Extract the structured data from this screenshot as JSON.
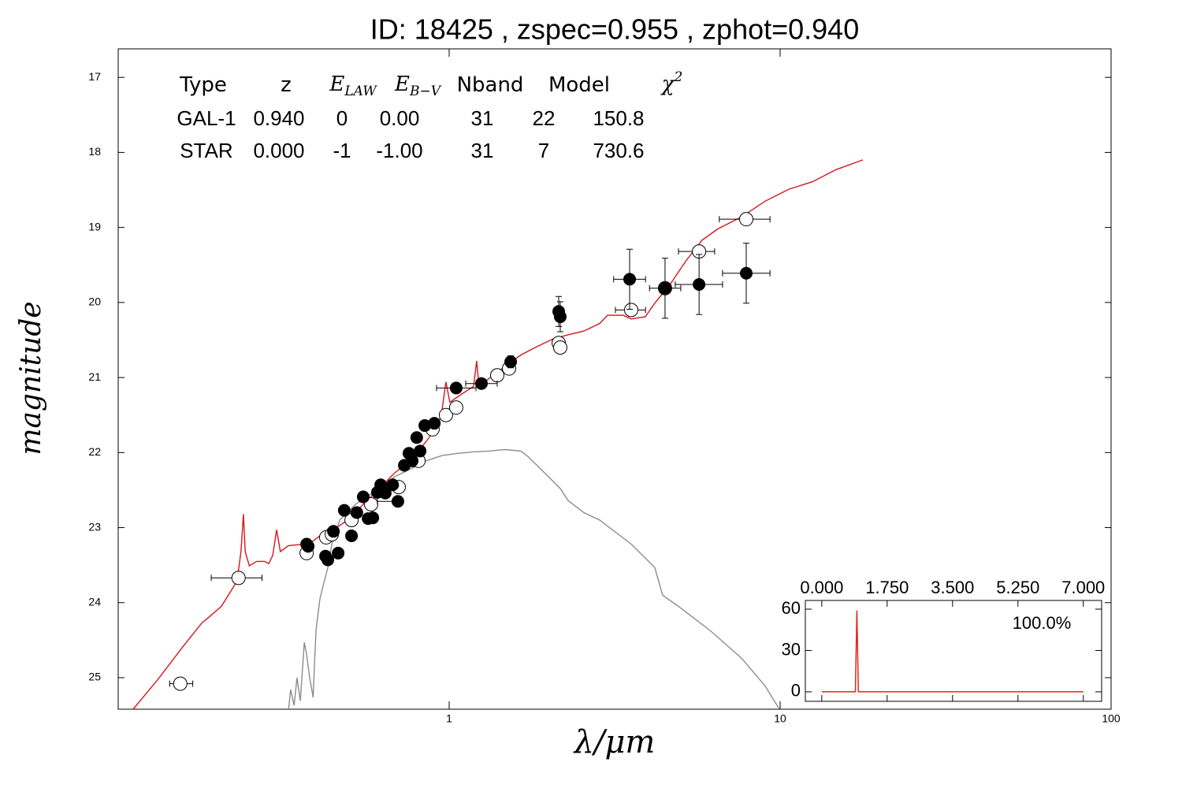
{
  "chart_data": [
    {
      "type": "sed",
      "title": "ID:  18425 , zspec=0.955 , zphot=0.940",
      "x_label": "λ/μm",
      "y_label": "magnitude",
      "xscale": "log",
      "xlim": [
        0.1,
        100
      ],
      "xticks": [
        1,
        10,
        100
      ],
      "ylim": [
        25.42,
        16.62
      ],
      "yticks": [
        17,
        18,
        19,
        20,
        21,
        22,
        23,
        24,
        25
      ],
      "fit_table": {
        "header": [
          {
            "text": "Type"
          },
          {
            "text": "z"
          },
          {
            "text": "E",
            "sub": "LAW"
          },
          {
            "text": "E",
            "sub": "B−V"
          },
          {
            "text": "Nband"
          },
          {
            "text": "Model"
          },
          {
            "text": "χ",
            "sup": "2"
          }
        ],
        "rows": [
          {
            "color": "#e3261b",
            "cells": [
              "GAL-1",
              "0.940",
              "0",
              "0.00",
              "31",
              "22",
              "150.8"
            ]
          },
          {
            "color": "#9a9a9a",
            "cells": [
              "STAR",
              "0.000",
              "-1",
              "-1.00",
              "31",
              "7",
              "730.6"
            ]
          }
        ]
      },
      "series": [
        {
          "style": "line",
          "color": "#d9141b",
          "x": [
            0.111,
            0.132,
            0.156,
            0.179,
            0.186,
            0.205,
            0.223,
            0.229,
            0.235,
            0.239,
            0.242,
            0.249,
            0.262,
            0.277,
            0.285,
            0.293,
            0.301,
            0.309,
            0.327,
            0.365,
            0.385,
            0.418,
            0.454,
            0.493,
            0.55,
            0.614,
            0.685,
            0.764,
            0.853,
            0.926,
            0.952,
            0.978,
            1.005,
            1.091,
            1.185,
            1.211,
            1.231,
            1.322,
            1.476,
            1.647,
            1.837,
            2.05,
            2.288,
            2.553,
            2.849,
            3.01,
            3.359,
            3.548,
            3.915,
            4.18,
            4.665,
            5.206,
            5.808,
            6.481,
            7.643,
            9.01,
            10.63,
            12.53,
            14.76,
            17.78
          ],
          "values": [
            25.42,
            25.02,
            24.6,
            24.27,
            24.21,
            24.05,
            23.79,
            23.69,
            23.32,
            22.82,
            23.32,
            23.51,
            23.45,
            23.45,
            23.48,
            23.37,
            23.03,
            23.32,
            23.24,
            23.22,
            23.19,
            23.07,
            23.01,
            22.9,
            22.69,
            22.48,
            22.27,
            22.11,
            21.85,
            21.64,
            21.43,
            21.06,
            21.33,
            21.22,
            21.12,
            20.78,
            21.12,
            21.01,
            20.85,
            20.7,
            20.59,
            20.49,
            20.43,
            20.38,
            20.28,
            20.17,
            20.17,
            20.22,
            20.19,
            20.01,
            19.75,
            19.44,
            19.17,
            19.02,
            18.86,
            18.65,
            18.49,
            18.39,
            18.23,
            18.1
          ]
        },
        {
          "style": "line",
          "color": "#8c8c8c",
          "x": [
            0.327,
            0.332,
            0.34,
            0.347,
            0.355,
            0.365,
            0.371,
            0.379,
            0.388,
            0.396,
            0.407,
            0.418,
            0.43,
            0.442,
            0.467,
            0.521,
            0.614,
            0.685,
            0.764,
            0.853,
            0.952,
            1.062,
            1.185,
            1.322,
            1.476,
            1.647,
            1.738,
            1.941,
            2.166,
            2.288,
            2.553,
            2.849,
            3.548,
            4.18,
            4.416,
            4.929,
            6.14,
            7.643,
            9.01,
            9.95
          ],
          "values": [
            25.42,
            25.16,
            25.37,
            25.0,
            25.31,
            24.53,
            24.69,
            25.0,
            25.26,
            24.37,
            23.95,
            23.74,
            23.53,
            23.22,
            22.9,
            22.69,
            22.48,
            22.32,
            22.22,
            22.11,
            22.04,
            22.01,
            21.99,
            21.98,
            21.96,
            21.98,
            22.06,
            22.27,
            22.48,
            22.64,
            22.8,
            22.9,
            23.22,
            23.53,
            23.9,
            24.05,
            24.37,
            24.74,
            25.11,
            25.42
          ]
        },
        {
          "style": "open",
          "color": "#000000",
          "x": [
            0.154,
            0.231,
            0.371,
            0.425,
            0.442,
            0.507,
            0.581,
            0.704,
            0.808,
            0.891,
            0.978,
            1.05,
            1.397,
            1.517,
            2.143,
            2.166,
            3.548,
            4.49,
            5.69,
            7.9
          ],
          "values": [
            25.08,
            23.67,
            23.34,
            23.13,
            23.09,
            22.9,
            22.69,
            22.46,
            22.11,
            21.69,
            21.5,
            21.4,
            20.97,
            20.88,
            20.54,
            20.6,
            20.1,
            19.81,
            19.32,
            18.89
          ],
          "x_lo": [
            0.143,
            0.191,
            null,
            null,
            null,
            null,
            null,
            null,
            null,
            null,
            null,
            null,
            null,
            null,
            null,
            null,
            3.18,
            null,
            4.93,
            6.55
          ],
          "x_hi": [
            0.168,
            0.272,
            null,
            null,
            null,
            null,
            null,
            null,
            null,
            null,
            null,
            null,
            null,
            null,
            null,
            null,
            3.92,
            null,
            6.34,
            9.32
          ]
        },
        {
          "style": "filled",
          "color": "#000000",
          "x": [
            0.371,
            0.375,
            0.423,
            0.43,
            0.447,
            0.462,
            0.482,
            0.507,
            0.526,
            0.55,
            0.569,
            0.588,
            0.607,
            0.621,
            0.641,
            0.675,
            0.7,
            0.732,
            0.756,
            0.773,
            0.798,
            0.817,
            0.844,
            0.902,
            1.05,
            1.252,
            1.534,
            2.143,
            2.166,
            3.51,
            4.49,
            5.69,
            7.9
          ],
          "values": [
            23.22,
            23.25,
            23.38,
            23.43,
            23.05,
            23.34,
            22.77,
            23.11,
            22.8,
            22.59,
            22.88,
            22.87,
            22.53,
            22.43,
            22.54,
            22.43,
            22.65,
            22.17,
            22.01,
            22.11,
            21.8,
            21.98,
            21.64,
            21.61,
            21.14,
            21.08,
            20.79,
            20.12,
            20.19,
            19.69,
            19.81,
            19.76,
            19.61
          ],
          "yerr": [
            0.06,
            0.06,
            0.06,
            0.06,
            0.05,
            0.06,
            0.05,
            0.05,
            0.05,
            0.05,
            0.05,
            0.05,
            0.05,
            0.05,
            0.05,
            0.05,
            0.05,
            0.05,
            0.05,
            0.05,
            0.05,
            0.05,
            0.05,
            0.05,
            0.05,
            0.05,
            0.08,
            0.2,
            0.2,
            0.4,
            0.4,
            0.4,
            0.4
          ],
          "x_lo": [
            null,
            null,
            null,
            null,
            null,
            null,
            null,
            null,
            null,
            null,
            null,
            null,
            null,
            null,
            null,
            null,
            0.607,
            null,
            null,
            null,
            null,
            null,
            null,
            null,
            0.916,
            1.122,
            null,
            null,
            null,
            3.14,
            4.03,
            4.82,
            6.7
          ],
          "x_hi": [
            null,
            null,
            null,
            null,
            null,
            null,
            null,
            null,
            null,
            null,
            null,
            null,
            null,
            null,
            null,
            null,
            0.704,
            null,
            null,
            null,
            null,
            null,
            null,
            null,
            1.205,
            1.397,
            null,
            null,
            null,
            3.92,
            5.01,
            6.7,
            9.32
          ]
        }
      ]
    },
    {
      "type": "line",
      "annotation": "100.0%",
      "color": "#e3261b",
      "x": [
        0,
        0.9,
        0.94,
        0.98,
        7
      ],
      "values": [
        0,
        0,
        59,
        0,
        0
      ],
      "xlim": [
        -0.44,
        7.49
      ],
      "xticks": [
        {
          "value": 0,
          "label": "0.000"
        },
        {
          "value": 1.75,
          "label": "1.750"
        },
        {
          "value": 3.5,
          "label": "3.500"
        },
        {
          "value": 5.25,
          "label": "5.250"
        },
        {
          "value": 7,
          "label": "7.000"
        }
      ],
      "ylim": [
        -6.9,
        66.3
      ],
      "yticks": [
        0,
        30,
        60
      ]
    }
  ]
}
